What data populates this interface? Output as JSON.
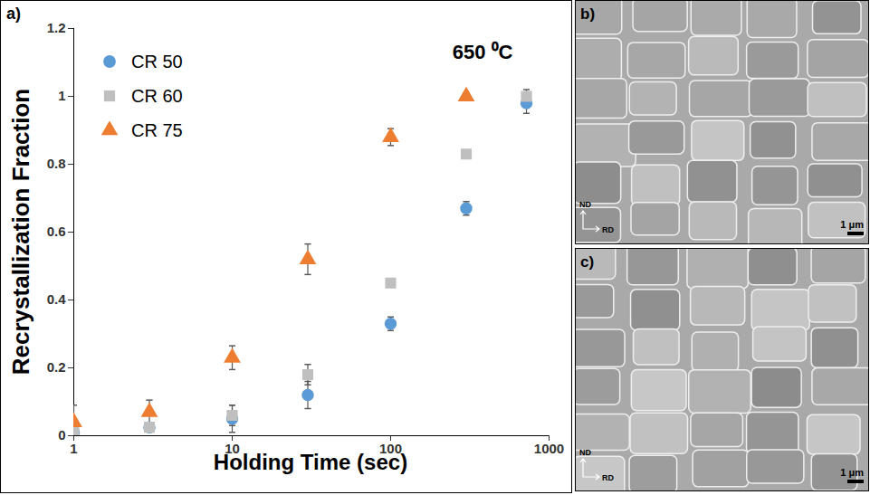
{
  "chart_data": {
    "type": "scatter",
    "annotation": "650 ⁰C",
    "panel_label": "a)",
    "x_label": "Holding Time (sec)",
    "y_label": "Recrystallization Fraction",
    "log": "x",
    "grid": false,
    "legend": "top-left",
    "x": [
      1,
      3,
      10,
      30,
      100,
      300,
      720
    ],
    "series": [
      {
        "name": "CR 50",
        "color": "#5b9bd5",
        "marker": "circle",
        "values": [
          0.01,
          0.025,
          0.05,
          0.12,
          0.33,
          0.67,
          0.98
        ],
        "errors": [
          0.01,
          0.01,
          0.04,
          0.04,
          0.02,
          0.02,
          0.03
        ]
      },
      {
        "name": "CR 60",
        "color": "#bfbfbf",
        "marker": "square",
        "values": [
          0.01,
          0.025,
          0.06,
          0.18,
          0.45,
          0.83,
          1.0
        ],
        "errors": [
          0.01,
          0.01,
          0.03,
          0.03,
          0.01,
          0.01,
          0.02
        ]
      },
      {
        "name": "CR 75",
        "color": "#ed7d31",
        "marker": "triangle",
        "values": [
          0.04,
          0.07,
          0.23,
          0.52,
          0.88,
          1.0,
          null
        ],
        "errors": [
          0.05,
          0.035,
          0.035,
          0.045,
          0.025,
          0.01,
          null
        ]
      }
    ],
    "xlim": [
      1,
      1000
    ],
    "xticks": [
      1,
      10,
      100,
      1000
    ],
    "ylim": [
      0,
      1.2
    ],
    "yticks": [
      0,
      0.2,
      0.4,
      0.6,
      0.8,
      1,
      1.2
    ]
  },
  "images": [
    {
      "label": "b)",
      "axis_labels": [
        "ND",
        "RD"
      ],
      "scale_bar": "1 μm"
    },
    {
      "label": "c)",
      "axis_labels": [
        "ND",
        "RD"
      ],
      "scale_bar": "1 μm"
    }
  ]
}
